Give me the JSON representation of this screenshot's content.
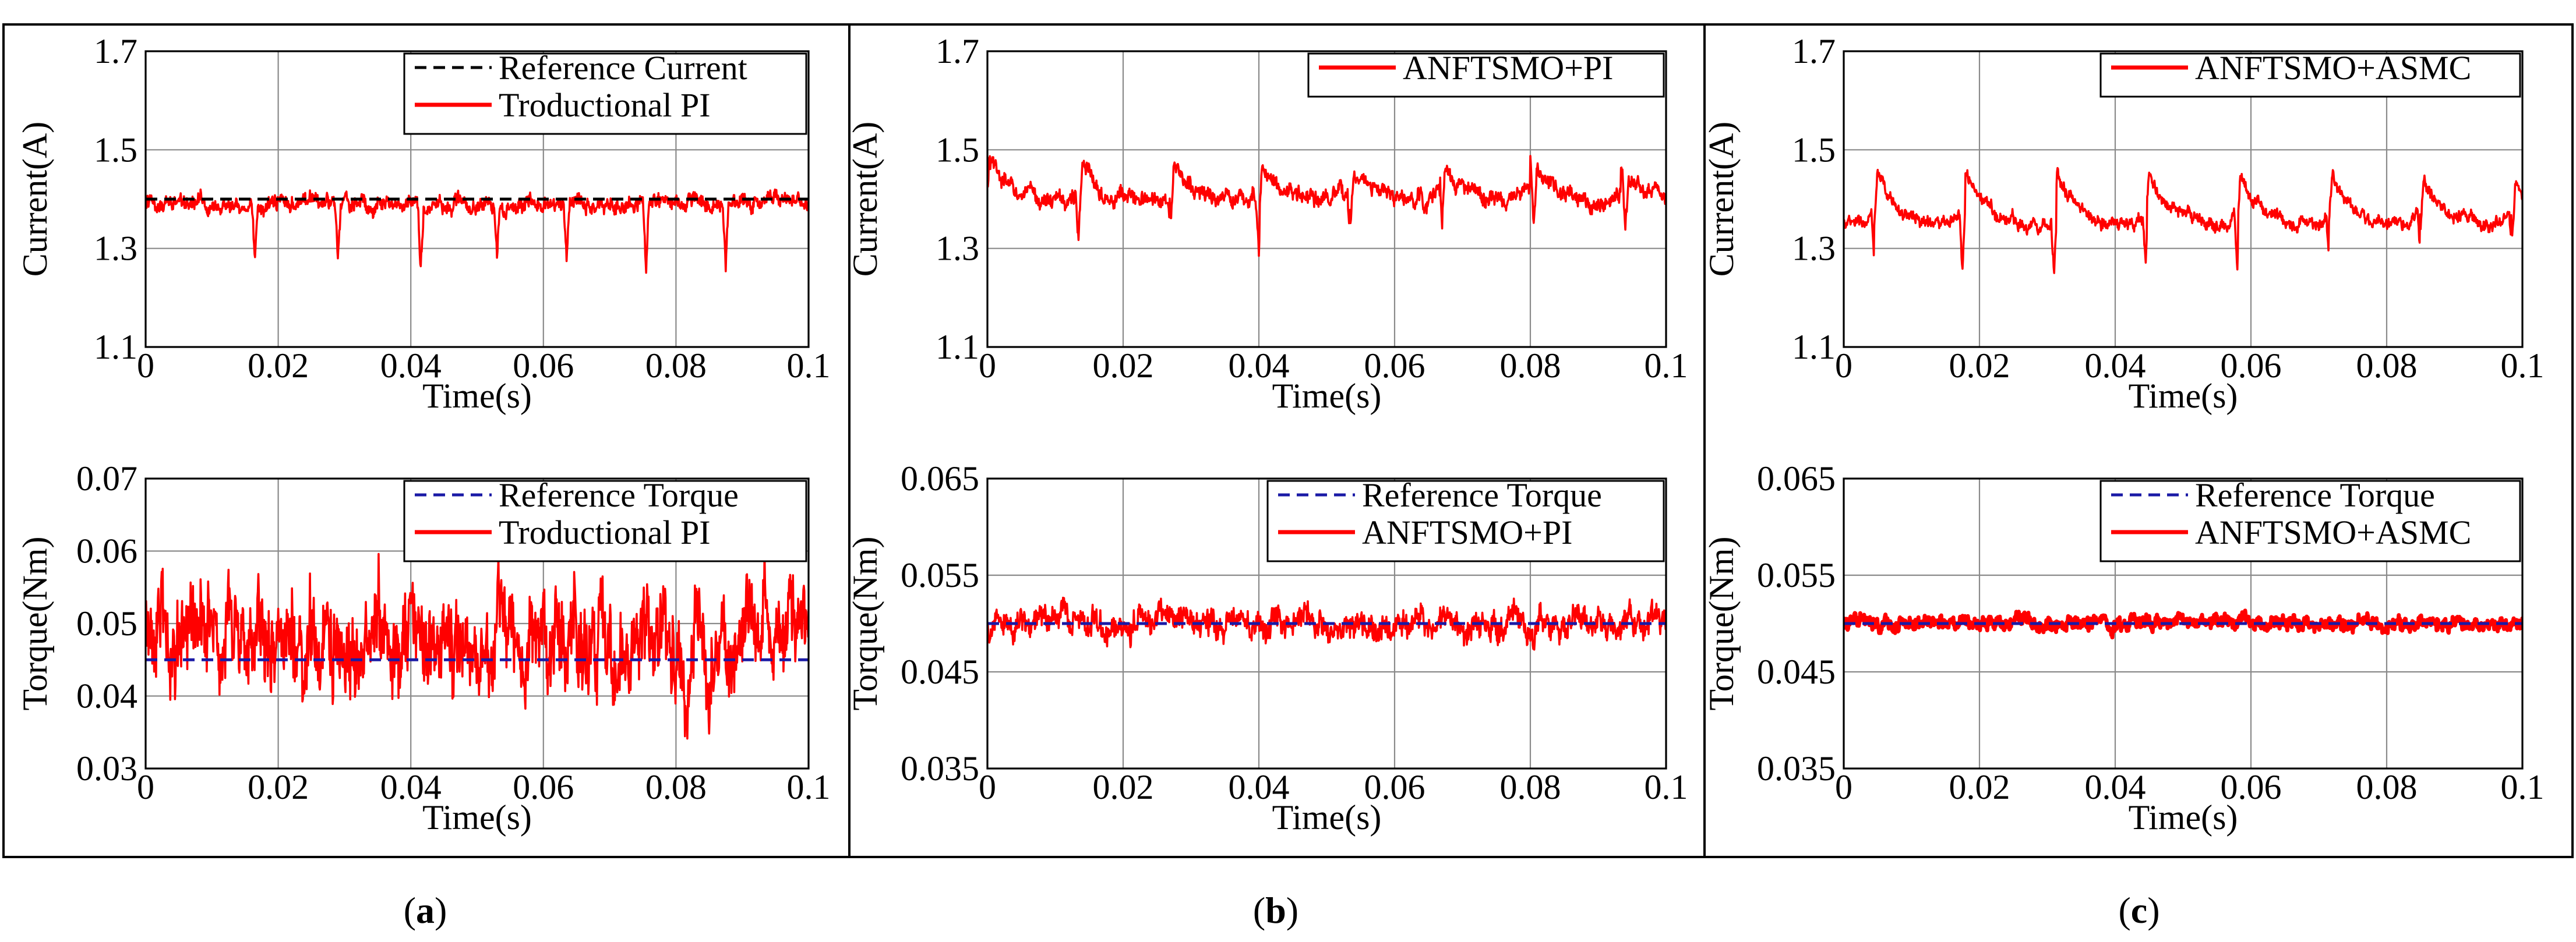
{
  "colors": {
    "measured": "#ff0000",
    "current_ref": "#000000",
    "torque_ref": "#1a1aa6",
    "grid": "#8a8a8a"
  },
  "captions": [
    {
      "open": "(",
      "letter": "a",
      "close": ")"
    },
    {
      "open": "(",
      "letter": "b",
      "close": ")"
    },
    {
      "open": "(",
      "letter": "c",
      "close": ")"
    }
  ],
  "chart_data": [
    {
      "id": "a-current",
      "type": "line",
      "xlabel": "Time(s)",
      "ylabel": "Current(A)",
      "xlim": [
        0,
        0.1
      ],
      "ylim": [
        1.1,
        1.7
      ],
      "xticks": [
        "0",
        "0.02",
        "0.04",
        "0.06",
        "0.08",
        "0.1"
      ],
      "yticks": [
        "1.1",
        "1.3",
        "1.5",
        "1.7"
      ],
      "legend_position": "top-right",
      "series": [
        {
          "name": "Reference Current",
          "style": "dashed",
          "color": "#000000",
          "reference": 1.4
        },
        {
          "name": "Troductional PI",
          "style": "solid",
          "color": "#ff0000",
          "base": 1.39,
          "noise": 0.012,
          "period": 0.0125,
          "phase": 0.004,
          "dips": [
            0.0165,
            0.029,
            0.0415,
            0.053,
            0.0635,
            0.0755,
            0.0875
          ],
          "dip_depth": -0.12,
          "lobe": 0
        }
      ]
    },
    {
      "id": "b-current",
      "type": "line",
      "xlabel": "Time(s)",
      "ylabel": "Current(A)",
      "xlim": [
        0,
        0.1
      ],
      "ylim": [
        1.1,
        1.7
      ],
      "xticks": [
        "0",
        "0.02",
        "0.04",
        "0.06",
        "0.08",
        "0.1"
      ],
      "yticks": [
        "1.1",
        "1.3",
        "1.5",
        "1.7"
      ],
      "legend_position": "top-right",
      "series": [
        {
          "name": "ANFTSMO+PI",
          "style": "solid",
          "color": "#ff0000",
          "base": 1.42,
          "noise": 0.013,
          "period": 0.0133,
          "phase": 0.0135,
          "dips": [
            0.0135,
            0.027,
            0.04,
            0.0535,
            0.067,
            0.0805,
            0.094
          ],
          "dip_depth": -0.12,
          "lobe": 0.09
        }
      ]
    },
    {
      "id": "c-current",
      "type": "line",
      "xlabel": "Time(s)",
      "ylabel": "Current(A)",
      "xlim": [
        0,
        0.1
      ],
      "ylim": [
        1.1,
        1.7
      ],
      "xticks": [
        "0",
        "0.02",
        "0.04",
        "0.06",
        "0.08",
        "0.1"
      ],
      "yticks": [
        "1.1",
        "1.3",
        "1.5",
        "1.7"
      ],
      "legend_position": "top-right",
      "series": [
        {
          "name": "ANFTSMO+ASMC",
          "style": "solid",
          "color": "#ff0000",
          "base": 1.38,
          "noise": 0.01,
          "period": 0.0134,
          "phase": 0.0045,
          "dips": [
            0.0045,
            0.0175,
            0.031,
            0.0445,
            0.058,
            0.0715,
            0.085,
            0.0985
          ],
          "dip_depth": -0.12,
          "lobe": 0.12
        }
      ]
    },
    {
      "id": "a-torque",
      "type": "line",
      "xlabel": "Time(s)",
      "ylabel": "Torque(Nm)",
      "xlim": [
        0,
        0.1
      ],
      "ylim": [
        0.03,
        0.07
      ],
      "xticks": [
        "0",
        "0.02",
        "0.04",
        "0.06",
        "0.08",
        "0.1"
      ],
      "yticks": [
        "0.03",
        "0.04",
        "0.05",
        "0.06",
        "0.07"
      ],
      "legend_position": "top-right",
      "series": [
        {
          "name": "Reference Torque",
          "style": "dashed",
          "color": "#1a1aa6",
          "reference": 0.045
        },
        {
          "name": "Troductional PI",
          "style": "solid",
          "color": "#ff0000",
          "base": 0.0475,
          "noise": 0.0048,
          "period": 0,
          "phase": 0,
          "dips": [],
          "dip_depth": 0,
          "lobe": 0
        }
      ]
    },
    {
      "id": "b-torque",
      "type": "line",
      "xlabel": "Time(s)",
      "ylabel": "Torque(Nm)",
      "xlim": [
        0,
        0.1
      ],
      "ylim": [
        0.035,
        0.065
      ],
      "xticks": [
        "0",
        "0.02",
        "0.04",
        "0.06",
        "0.08",
        "0.1"
      ],
      "yticks": [
        "0.035",
        "0.045",
        "0.055",
        "0.065"
      ],
      "legend_position": "top-right",
      "series": [
        {
          "name": "Reference Torque",
          "style": "dashed",
          "color": "#1a1aa6",
          "reference": 0.05
        },
        {
          "name": "ANFTSMO+PI",
          "style": "solid",
          "color": "#ff0000",
          "base": 0.05,
          "noise": 0.0011,
          "period": 0,
          "phase": 0,
          "dips": [],
          "dip_depth": 0,
          "lobe": 0
        }
      ]
    },
    {
      "id": "c-torque",
      "type": "line",
      "xlabel": "Time(s)",
      "ylabel": "Torque(Nm)",
      "xlim": [
        0,
        0.1
      ],
      "ylim": [
        0.035,
        0.065
      ],
      "xticks": [
        "0",
        "0.02",
        "0.04",
        "0.06",
        "0.08",
        "0.1"
      ],
      "yticks": [
        "0.035",
        "0.045",
        "0.055",
        "0.065"
      ],
      "legend_position": "top-right",
      "series": [
        {
          "name": "Reference Torque",
          "style": "dashed",
          "color": "#1a1aa6",
          "reference": 0.05
        },
        {
          "name": "ANFTSMO+ASMC",
          "style": "solid",
          "color": "#ff0000",
          "base": 0.05,
          "noise": 0.00055,
          "period": 0,
          "phase": 0,
          "dips": [],
          "dip_depth": 0,
          "lobe": 0
        }
      ]
    }
  ]
}
